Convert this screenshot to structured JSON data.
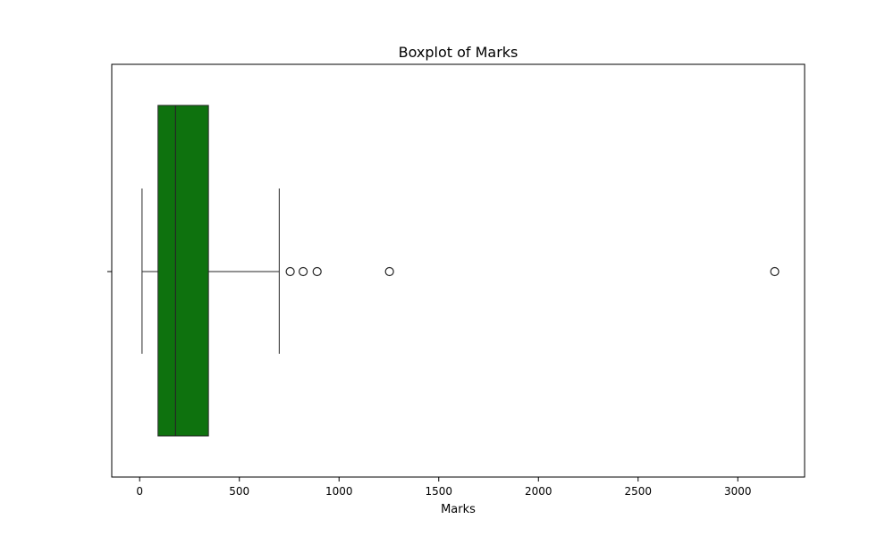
{
  "chart_data": {
    "type": "boxplot",
    "title": "Boxplot of Marks",
    "xlabel": "Marks",
    "ylabel": "",
    "xlim": [
      -140,
      3335
    ],
    "xticks": [
      0,
      500,
      1000,
      1500,
      2000,
      2500,
      3000
    ],
    "grid": false,
    "orientation": "horizontal",
    "colors": {
      "box_fill": "#0e720e",
      "line": "#262626",
      "frame": "#000000"
    },
    "box": {
      "whisker_low": 12,
      "q1": 92,
      "median": 180,
      "q3": 345,
      "whisker_high": 700
    },
    "outliers": [
      755,
      820,
      890,
      1253,
      3185
    ]
  }
}
